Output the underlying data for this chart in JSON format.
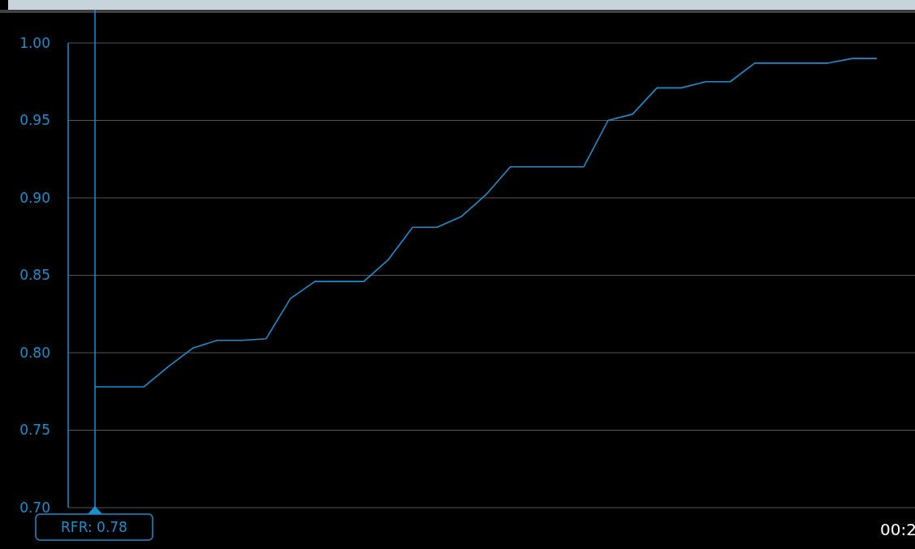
{
  "chart_data": {
    "type": "line",
    "categories": [
      null,
      null,
      null,
      null,
      null,
      null,
      null,
      null,
      null,
      null,
      null,
      null,
      null,
      null,
      null,
      null,
      null,
      null,
      null,
      null,
      null,
      null,
      null,
      null,
      null,
      null,
      null,
      null,
      null,
      null,
      null,
      null,
      null
    ],
    "series": [
      {
        "color": "#1a8fd0",
        "values": [
          0.778,
          0.778,
          0.778,
          0.791,
          0.803,
          0.808,
          0.808,
          0.809,
          0.835,
          0.846,
          0.846,
          0.846,
          0.86,
          0.881,
          0.881,
          0.888,
          0.902,
          0.92,
          0.92,
          0.92,
          0.92,
          0.95,
          0.954,
          0.971,
          0.971,
          0.975,
          0.975,
          0.987,
          0.987,
          0.987,
          0.987,
          0.99,
          0.99
        ]
      }
    ],
    "ylim": [
      0.7,
      1.0
    ],
    "yticks": [
      {
        "value": 0.7,
        "label": "0.70"
      },
      0.75,
      {
        "value": 0.8,
        "label": "0.80"
      },
      0.85,
      {
        "value": 0.9,
        "label": "0.90"
      },
      0.95,
      {
        "value": 1.0,
        "label": "1.00"
      }
    ],
    "grid": "y",
    "marker": "none",
    "line_style": "solid",
    "annotations": [
      "RFR: 0.78",
      "00:2"
    ]
  }
}
